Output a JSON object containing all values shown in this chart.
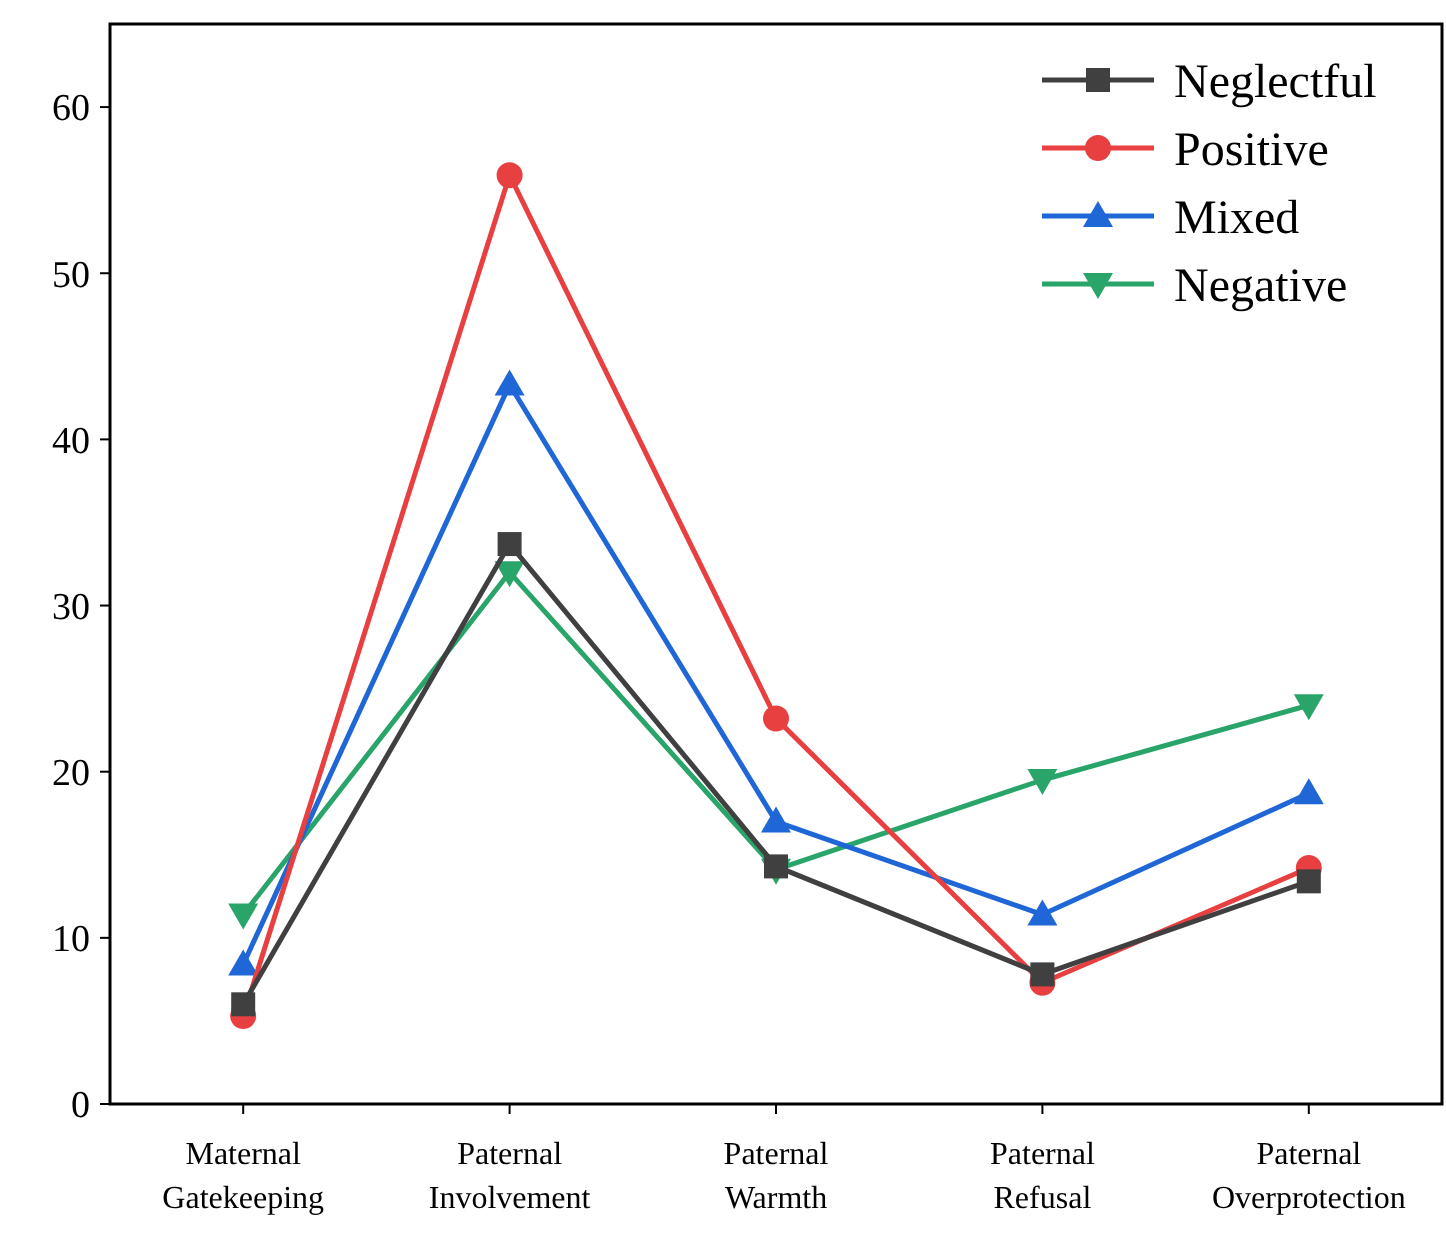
{
  "chart_data": {
    "type": "line",
    "categories": [
      "Maternal Gatekeeping",
      "Paternal Involvement",
      "Paternal Warmth",
      "Paternal Refusal",
      "Paternal Overprotection"
    ],
    "series": [
      {
        "name": "Neglectful",
        "color": "#404040",
        "marker": "square",
        "values": [
          6,
          33.7,
          14.3,
          7.8,
          13.4
        ]
      },
      {
        "name": "Positive",
        "color": "#e84040",
        "marker": "circle",
        "values": [
          5.3,
          55.9,
          23.2,
          7.3,
          14.2
        ]
      },
      {
        "name": "Mixed",
        "color": "#1f66d6",
        "marker": "triangle",
        "values": [
          8.4,
          43.3,
          17,
          11.4,
          18.7
        ]
      },
      {
        "name": "Negative",
        "color": "#2aa56a",
        "marker": "triangle-down",
        "values": [
          11.4,
          32,
          14.1,
          19.5,
          24
        ]
      }
    ],
    "ylim": [
      0,
      65
    ],
    "yticks": [
      0,
      10,
      20,
      30,
      40,
      50,
      60
    ],
    "grid": false,
    "legend": "top right",
    "line_style": "solid"
  }
}
